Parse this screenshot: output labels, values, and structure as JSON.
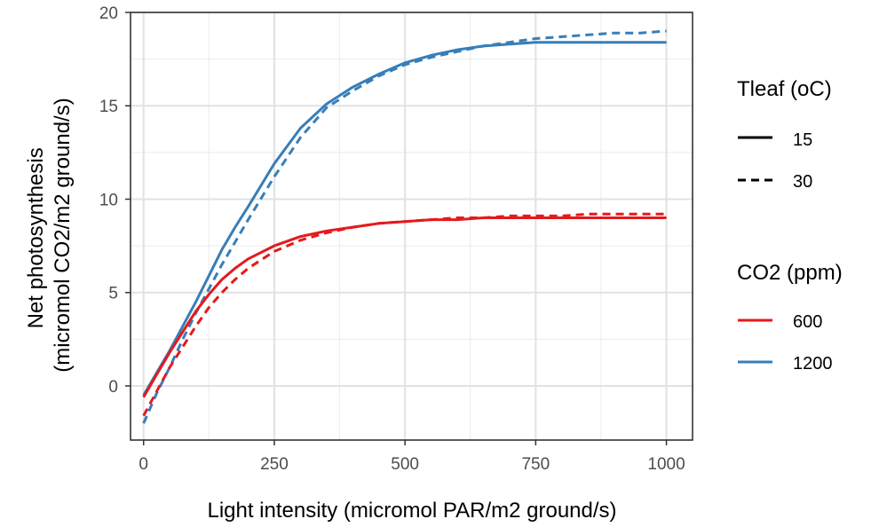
{
  "chart_data": {
    "type": "line",
    "xlabel": "Light intensity (micromol PAR/m2 ground/s)",
    "ylabel_lines": [
      "Net photosynthesis",
      "(micromol CO2/m2 ground/s)"
    ],
    "xlim": [
      -25,
      1050
    ],
    "ylim": [
      -2.9,
      20
    ],
    "xticks": [
      0,
      250,
      500,
      750,
      1000
    ],
    "xtick_labels": [
      "0",
      "250",
      "500",
      "750",
      "1000"
    ],
    "yticks": [
      0,
      5,
      10,
      15,
      20
    ],
    "ytick_labels": [
      "0",
      "5",
      "10",
      "15",
      "20"
    ],
    "grid": true,
    "legend_placement": "right",
    "legends": [
      {
        "title": "Tleaf (oC)",
        "entries": [
          {
            "label": "15",
            "linetype": "solid",
            "color": "#000000"
          },
          {
            "label": "30",
            "linetype": "dashed",
            "color": "#000000"
          }
        ]
      },
      {
        "title": "CO2 (ppm)",
        "entries": [
          {
            "label": "600",
            "linetype": "solid",
            "color": "#e41a1c"
          },
          {
            "label": "1200",
            "linetype": "solid",
            "color": "#377eb8"
          }
        ]
      }
    ],
    "series": [
      {
        "tleaf": "15",
        "co2": "1200",
        "color": "#377eb8",
        "linetype": "solid",
        "x": [
          0,
          25,
          50,
          75,
          100,
          125,
          150,
          175,
          200,
          250,
          300,
          350,
          400,
          450,
          500,
          550,
          600,
          650,
          700,
          750,
          800,
          850,
          900,
          950,
          1000
        ],
        "y": [
          -0.5,
          0.7,
          1.9,
          3.2,
          4.5,
          5.9,
          7.3,
          8.5,
          9.6,
          11.9,
          13.8,
          15.1,
          16.0,
          16.7,
          17.3,
          17.7,
          18.0,
          18.2,
          18.3,
          18.4,
          18.4,
          18.4,
          18.4,
          18.4,
          18.4
        ]
      },
      {
        "tleaf": "30",
        "co2": "1200",
        "color": "#377eb8",
        "linetype": "dashed",
        "x": [
          0,
          25,
          50,
          75,
          100,
          125,
          150,
          175,
          200,
          250,
          300,
          350,
          400,
          450,
          500,
          550,
          600,
          650,
          700,
          750,
          800,
          850,
          900,
          950,
          1000
        ],
        "y": [
          -2.0,
          -0.4,
          1.0,
          2.5,
          3.9,
          5.2,
          6.5,
          7.7,
          8.9,
          11.2,
          13.3,
          14.9,
          15.8,
          16.6,
          17.2,
          17.6,
          17.9,
          18.2,
          18.4,
          18.6,
          18.7,
          18.8,
          18.9,
          18.9,
          19.0
        ]
      },
      {
        "tleaf": "15",
        "co2": "600",
        "color": "#e41a1c",
        "linetype": "solid",
        "x": [
          0,
          25,
          50,
          75,
          100,
          125,
          150,
          175,
          200,
          250,
          300,
          350,
          400,
          450,
          500,
          550,
          600,
          650,
          700,
          750,
          800,
          850,
          900,
          950,
          1000
        ],
        "y": [
          -0.6,
          0.6,
          1.8,
          2.9,
          4.0,
          4.9,
          5.7,
          6.3,
          6.8,
          7.5,
          8.0,
          8.3,
          8.5,
          8.7,
          8.8,
          8.9,
          8.9,
          9.0,
          9.0,
          9.0,
          9.0,
          9.0,
          9.0,
          9.0,
          9.0
        ]
      },
      {
        "tleaf": "30",
        "co2": "600",
        "color": "#e41a1c",
        "linetype": "dashed",
        "x": [
          0,
          25,
          50,
          75,
          100,
          125,
          150,
          175,
          200,
          250,
          300,
          350,
          400,
          450,
          500,
          550,
          600,
          650,
          700,
          750,
          800,
          850,
          900,
          950,
          1000
        ],
        "y": [
          -1.6,
          -0.3,
          1.0,
          2.1,
          3.2,
          4.2,
          5.0,
          5.7,
          6.3,
          7.2,
          7.8,
          8.2,
          8.5,
          8.7,
          8.8,
          8.9,
          9.0,
          9.0,
          9.1,
          9.1,
          9.1,
          9.2,
          9.2,
          9.2,
          9.2
        ]
      }
    ]
  }
}
